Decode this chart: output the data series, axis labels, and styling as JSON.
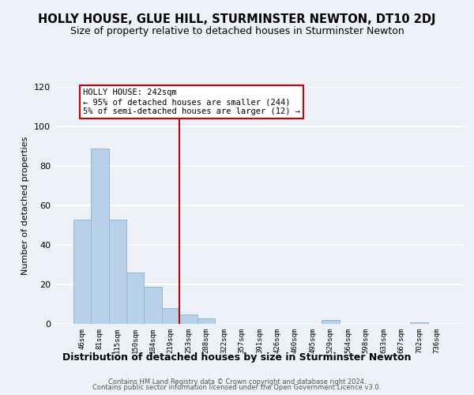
{
  "title": "HOLLY HOUSE, GLUE HILL, STURMINSTER NEWTON, DT10 2DJ",
  "subtitle": "Size of property relative to detached houses in Sturminster Newton",
  "xlabel": "Distribution of detached houses by size in Sturminster Newton",
  "ylabel": "Number of detached properties",
  "bar_labels": [
    "46sqm",
    "81sqm",
    "115sqm",
    "150sqm",
    "184sqm",
    "219sqm",
    "253sqm",
    "288sqm",
    "322sqm",
    "357sqm",
    "391sqm",
    "426sqm",
    "460sqm",
    "495sqm",
    "529sqm",
    "564sqm",
    "598sqm",
    "633sqm",
    "667sqm",
    "702sqm",
    "736sqm"
  ],
  "bar_heights": [
    53,
    89,
    53,
    26,
    19,
    8,
    5,
    3,
    0,
    0,
    0,
    0,
    0,
    0,
    2,
    0,
    0,
    0,
    0,
    1,
    0
  ],
  "bar_color": "#b8d0e8",
  "bar_edge_color": "#90b8d8",
  "vline_color": "#cc0000",
  "annotation_line1": "HOLLY HOUSE: 242sqm",
  "annotation_line2": "← 95% of detached houses are smaller (244)",
  "annotation_line3": "5% of semi-detached houses are larger (12) →",
  "annotation_box_color": "#ffffff",
  "annotation_box_edge_color": "#cc0000",
  "ylim": [
    0,
    120
  ],
  "yticks": [
    0,
    20,
    40,
    60,
    80,
    100,
    120
  ],
  "footer1": "Contains HM Land Registry data © Crown copyright and database right 2024.",
  "footer2": "Contains public sector information licensed under the Open Government Licence v3.0.",
  "title_fontsize": 10.5,
  "subtitle_fontsize": 9,
  "background_color": "#eef2f8"
}
